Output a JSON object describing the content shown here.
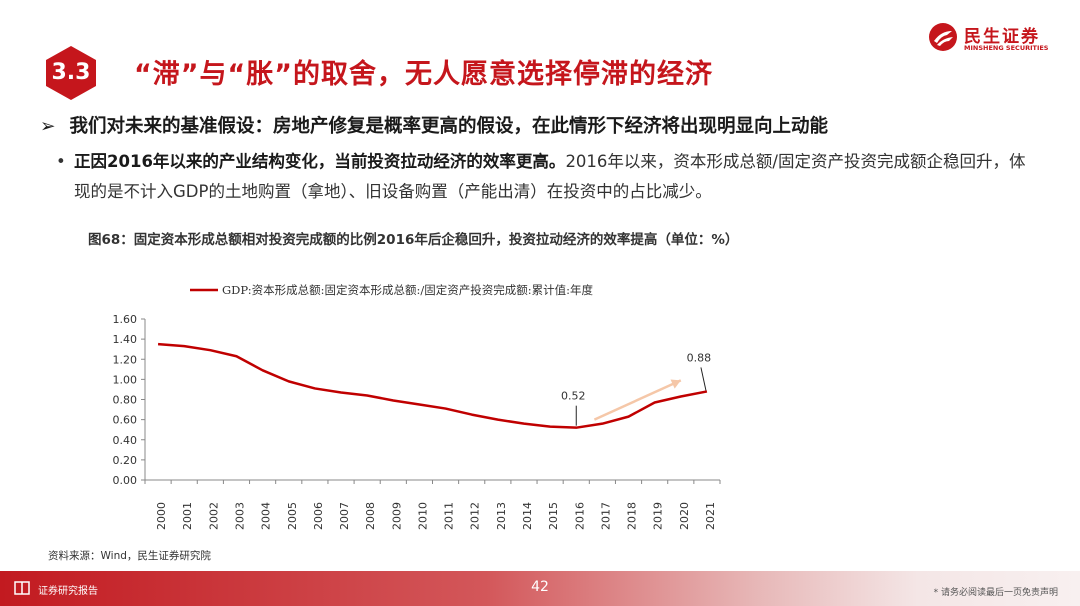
{
  "header": {
    "section_number": "3.3",
    "title": "“滞”与“胀”的取舍，无人愿意选择停滞的经济",
    "logo_cn": "民生证券",
    "logo_en": "MINSHENG SECURITIES",
    "brand_color": "#c5161c"
  },
  "body": {
    "main_bullet": "我们对未来的基准假设：房地产修复是概率更高的假设，在此情形下经济将出现明显向上动能",
    "sub_bullet_bold": "正因2016年以来的产业结构变化，当前投资拉动经济的效率更高。",
    "sub_bullet_text": "2016年以来，资本形成总额/固定资产投资完成额企稳回升，体现的是不计入GDP的土地购置（拿地）、旧设备购置（产能出清）在投资中的占比减少。"
  },
  "chart_caption": "图68：固定资本形成总额相对投资完成额的比例2016年后企稳回升，投资拉动经济的效率提高（单位：%）",
  "chart_data": {
    "type": "line",
    "title": "",
    "xlabel": "",
    "ylabel": "",
    "categories": [
      "2000",
      "2001",
      "2002",
      "2003",
      "2004",
      "2005",
      "2006",
      "2007",
      "2008",
      "2009",
      "2010",
      "2011",
      "2012",
      "2013",
      "2014",
      "2015",
      "2016",
      "2017",
      "2018",
      "2019",
      "2020",
      "2021"
    ],
    "series": [
      {
        "name": "GDP:资本形成总额:固定资本形成总额:/固定资产投资完成额:累计值:年度",
        "color": "#c00000",
        "values": [
          1.35,
          1.33,
          1.29,
          1.23,
          1.09,
          0.98,
          0.91,
          0.87,
          0.84,
          0.79,
          0.75,
          0.71,
          0.65,
          0.6,
          0.56,
          0.53,
          0.52,
          0.56,
          0.63,
          0.77,
          0.83,
          0.88
        ]
      }
    ],
    "ylim": [
      0,
      1.6
    ],
    "yticks": [
      "0.00",
      "0.20",
      "0.40",
      "0.60",
      "0.80",
      "1.00",
      "1.20",
      "1.40",
      "1.60"
    ],
    "legend_position": "top",
    "annotations": [
      {
        "label": "0.52",
        "x": "2016",
        "y": 0.52
      },
      {
        "label": "0.88",
        "x": "2021",
        "y": 0.88
      }
    ],
    "trend_arrow": {
      "from": [
        "2017",
        0.6
      ],
      "to": [
        "2020",
        0.99
      ],
      "color": "#f5c7a8"
    }
  },
  "source": "资料来源：Wind，民生证券研究院",
  "footer": {
    "left_label": "证券研究报告",
    "page_number": "42",
    "disclaimer": "* 请务必阅读最后一页免责声明"
  }
}
